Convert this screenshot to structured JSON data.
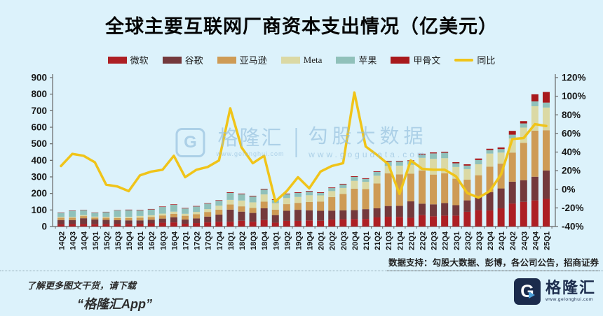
{
  "title": "全球主要互联网厂商资本支出情况（亿美元）",
  "chart_data": {
    "type": "bar",
    "subtype": "stacked-bars-with-line",
    "unit": "亿美元",
    "legend_position": "top",
    "grid": false,
    "categories": [
      "14Q2",
      "14Q3",
      "14Q4",
      "15Q1",
      "15Q2",
      "15Q3",
      "15Q4",
      "16Q1",
      "16Q2",
      "16Q3",
      "16Q4",
      "17Q1",
      "17Q2",
      "17Q3",
      "17Q4",
      "18Q1",
      "18Q2",
      "18Q3",
      "18Q4",
      "19Q1",
      "19Q2",
      "19Q3",
      "19Q4",
      "20Q1",
      "20Q2",
      "20Q3",
      "20Q4",
      "21Q1",
      "21Q2",
      "21Q3",
      "21Q4",
      "22Q1",
      "22Q2",
      "22Q3",
      "22Q4",
      "23Q1",
      "23Q2",
      "23Q3",
      "23Q4",
      "24Q1",
      "24Q2",
      "24Q3",
      "24Q4",
      "25Q1"
    ],
    "series": [
      {
        "name": "微软",
        "color": "#AD1F24",
        "values": [
          13,
          15,
          15,
          14,
          15,
          15,
          16,
          17,
          19,
          23,
          25,
          17,
          21,
          25,
          29,
          29,
          35,
          29,
          39,
          23,
          34,
          34,
          37,
          35,
          42,
          44,
          45,
          46,
          55,
          59,
          58,
          53,
          69,
          62,
          66,
          66,
          89,
          99,
          97,
          110,
          139,
          149,
          158,
          167
        ]
      },
      {
        "name": "谷歌",
        "color": "#74393C",
        "values": [
          26,
          24,
          35,
          29,
          25,
          23,
          21,
          20,
          22,
          25,
          31,
          25,
          28,
          35,
          43,
          73,
          55,
          53,
          71,
          46,
          61,
          67,
          61,
          60,
          54,
          54,
          54,
          59,
          55,
          65,
          67,
          99,
          69,
          72,
          76,
          63,
          69,
          81,
          110,
          120,
          132,
          131,
          143,
          172
        ]
      },
      {
        "name": "亚马逊",
        "color": "#CE9B55",
        "values": [
          14,
          14,
          13,
          11,
          13,
          13,
          14,
          16,
          17,
          19,
          21,
          23,
          25,
          28,
          30,
          31,
          32,
          30,
          40,
          33,
          40,
          42,
          50,
          56,
          82,
          99,
          130,
          121,
          150,
          197,
          190,
          167,
          200,
          180,
          180,
          160,
          125,
          130,
          155,
          150,
          176,
          226,
          278,
          243
        ]
      },
      {
        "name": "Meta",
        "color": "#DBD9A4",
        "values": [
          5,
          5,
          6,
          6,
          6,
          7,
          8,
          11,
          10,
          11,
          13,
          12,
          14,
          17,
          24,
          28,
          35,
          34,
          44,
          39,
          37,
          36,
          41,
          37,
          36,
          36,
          47,
          44,
          47,
          45,
          53,
          54,
          77,
          95,
          91,
          71,
          64,
          66,
          79,
          67,
          85,
          92,
          148,
          137
        ]
      },
      {
        "name": "苹果",
        "color": "#90C1BA",
        "values": [
          25,
          37,
          30,
          23,
          28,
          39,
          40,
          33,
          35,
          40,
          41,
          32,
          33,
          33,
          30,
          42,
          38,
          36,
          30,
          20,
          23,
          24,
          22,
          15,
          18,
          21,
          24,
          18,
          23,
          27,
          25,
          23,
          20,
          33,
          33,
          22,
          21,
          26,
          21,
          21,
          23,
          25,
          29,
          30
        ]
      },
      {
        "name": "甲骨文",
        "color": "#A8191C",
        "values": [
          2,
          2,
          2,
          2,
          2,
          2,
          3,
          3,
          3,
          3,
          3,
          3,
          3,
          3,
          3,
          4,
          4,
          4,
          4,
          4,
          4,
          4,
          4,
          4,
          4,
          4,
          4,
          4,
          4,
          4,
          4,
          4,
          5,
          6,
          6,
          7,
          8,
          9,
          8,
          10,
          23,
          14,
          43,
          64
        ]
      }
    ],
    "line_series": {
      "name": "同比",
      "color": "#F0C419",
      "axis": "right",
      "unit": "%",
      "values": [
        25,
        38,
        36,
        29,
        5,
        3,
        -2,
        15,
        19,
        21,
        36,
        13,
        21,
        24,
        31,
        87,
        45,
        28,
        36,
        -13,
        -2,
        13,
        1,
        19,
        25,
        28,
        104,
        46,
        37,
        27,
        -5,
        31,
        22,
        21,
        21,
        14,
        -4,
        -9,
        -2,
        16,
        54,
        55,
        70,
        68
      ]
    },
    "left_axis": {
      "min": 0,
      "max": 900,
      "step": 100,
      "ticks": [
        "0",
        "100",
        "200",
        "300",
        "400",
        "500",
        "600",
        "700",
        "800",
        "900"
      ]
    },
    "right_axis": {
      "min": -40,
      "max": 120,
      "step": 20,
      "ticks": [
        "-40%",
        "-20%",
        "0%",
        "20%",
        "40%",
        "60%",
        "80%",
        "100%",
        "120%"
      ]
    }
  },
  "watermark": {
    "logo_letter": "G",
    "brand": "格隆汇",
    "brand_url": "www.gelonghui.com",
    "partner": "勾股大数据",
    "partner_url": "www.gogudata.com"
  },
  "source_note": "数据支持：勾股大数据、彭博，各公司公告，招商证券",
  "footer": {
    "promo_line1": "了解更多图文干货，请下载",
    "promo_line2": "“格隆汇App”",
    "logo_letter": "G",
    "logo_name": "格隆汇",
    "logo_url": "www.gelonghui.com"
  },
  "colors": {
    "background": "#DCF2FB",
    "axis": "#666666",
    "axis_text": "#161616",
    "yoy_line": "#F0C419",
    "watermark": "#8FBCDC",
    "logo_navy": "#1B2B4C",
    "logo_arrow": "#4D9FD8"
  }
}
